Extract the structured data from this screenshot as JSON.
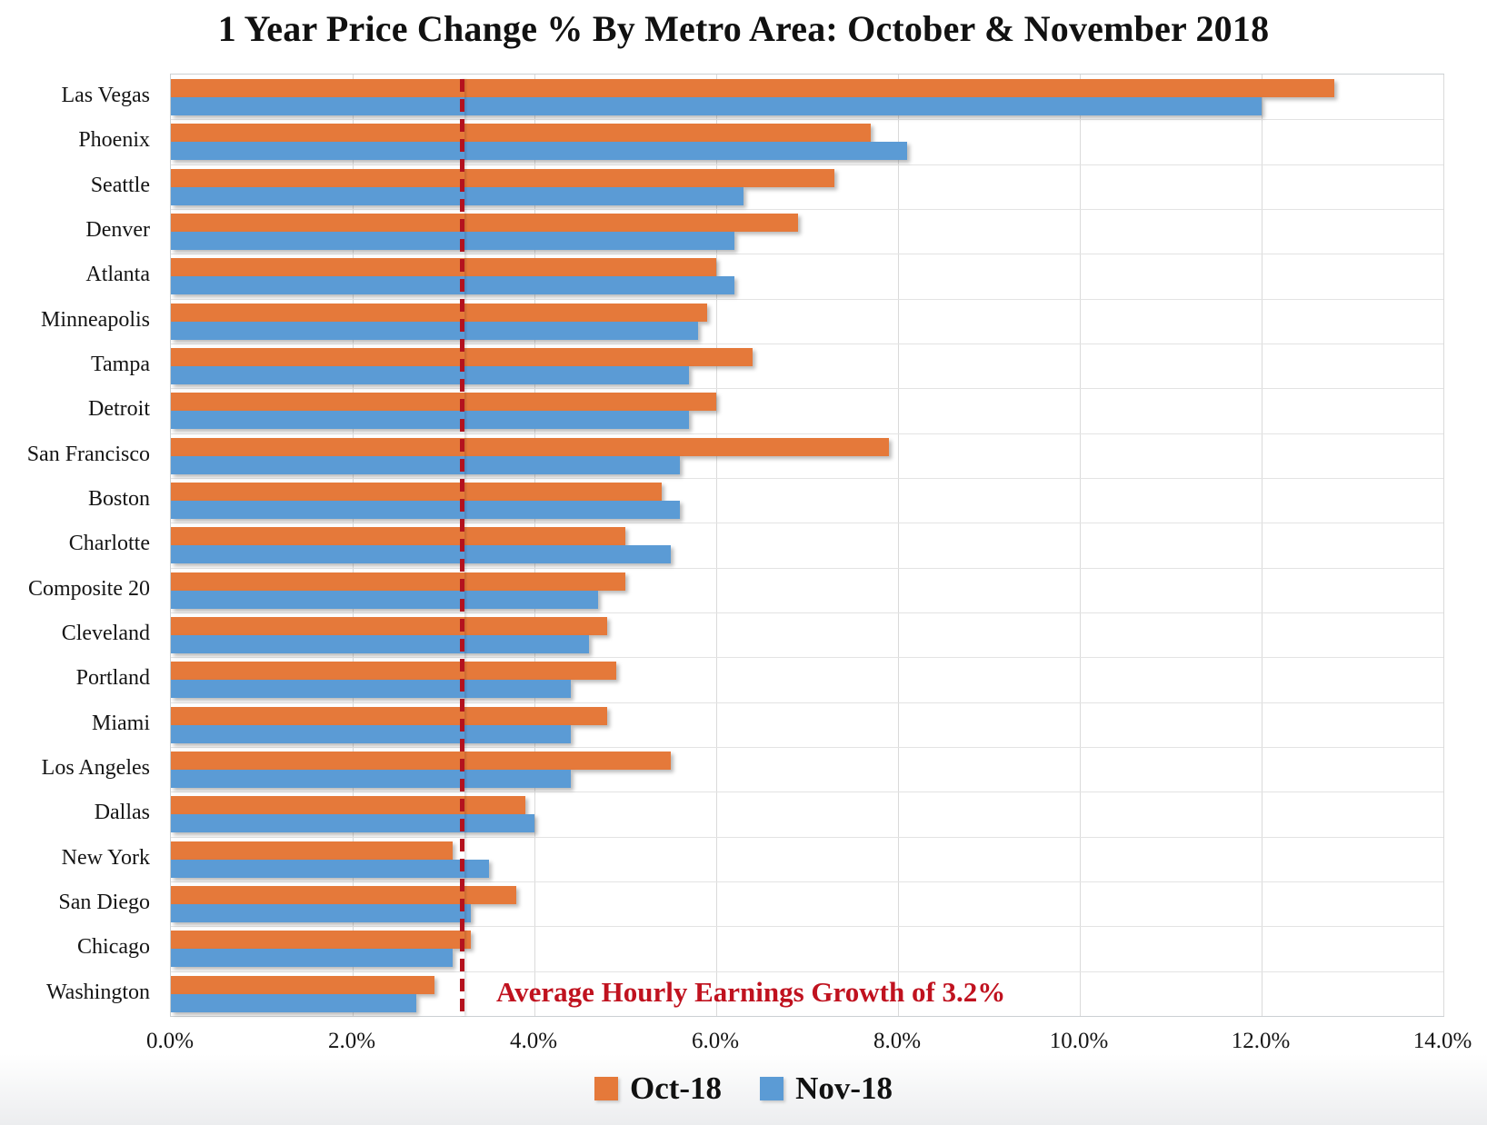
{
  "chart_data": {
    "type": "bar",
    "orientation": "horizontal",
    "title": "1 Year Price Change % By Metro Area: October & November 2018",
    "categories": [
      "Las Vegas",
      "Phoenix",
      "Seattle",
      "Denver",
      "Atlanta",
      "Minneapolis",
      "Tampa",
      "Detroit",
      "San Francisco",
      "Boston",
      "Charlotte",
      "Composite 20",
      "Cleveland",
      "Portland",
      "Miami",
      "Los Angeles",
      "Dallas",
      "New York",
      "San Diego",
      "Chicago",
      "Washington"
    ],
    "series": [
      {
        "name": "Oct-18",
        "color": "#E5793A",
        "values": [
          12.8,
          7.7,
          7.3,
          6.9,
          6.0,
          5.9,
          6.4,
          6.0,
          7.9,
          5.4,
          5.0,
          5.0,
          4.8,
          4.9,
          4.8,
          5.5,
          3.9,
          3.1,
          3.8,
          3.3,
          2.9
        ]
      },
      {
        "name": "Nov-18",
        "color": "#5B9BD5",
        "values": [
          12.0,
          8.1,
          6.3,
          6.2,
          6.2,
          5.8,
          5.7,
          5.7,
          5.6,
          5.6,
          5.5,
          4.7,
          4.6,
          4.4,
          4.4,
          4.4,
          4.0,
          3.5,
          3.3,
          3.1,
          2.7
        ]
      }
    ],
    "xlabel": "",
    "ylabel": "",
    "xlim": [
      0,
      14
    ],
    "x_ticks": {
      "values": [
        0,
        2,
        4,
        6,
        8,
        10,
        12,
        14
      ],
      "labels": [
        "0.0%",
        "2.0%",
        "4.0%",
        "6.0%",
        "8.0%",
        "10.0%",
        "12.0%",
        "14.0%"
      ]
    },
    "grid": "both",
    "legend_position": "bottom",
    "reference_line": {
      "value": 3.2,
      "label": "Average Hourly Earnings Growth of 3.2%",
      "color": "#C0121F",
      "style": "dashed"
    }
  },
  "colors": {
    "gridline": "#DADADA",
    "plot_border": "#CBD0D3",
    "text": "#1A1A1A"
  }
}
